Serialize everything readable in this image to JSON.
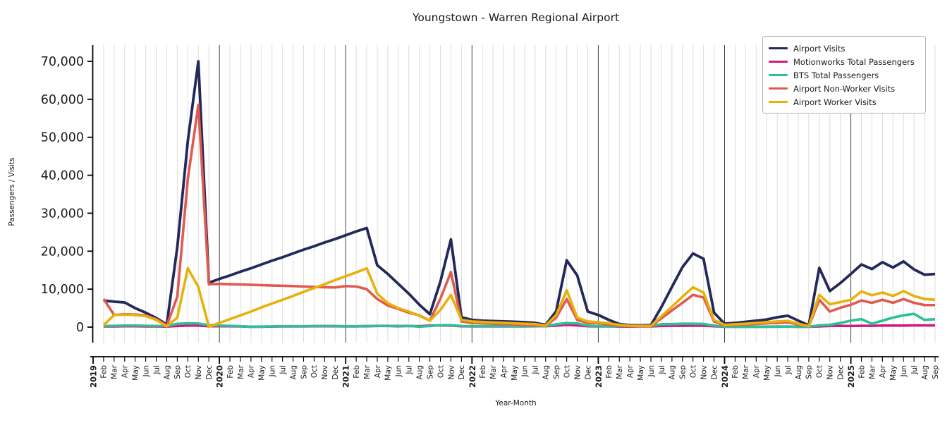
{
  "figure": {
    "title": "Youngstown - Warren Regional Airport",
    "xlabel": "Year-Month",
    "ylabel": "Passengers / Visits"
  },
  "axes": {
    "y_ticks": [
      {
        "v": 0,
        "label": "0"
      },
      {
        "v": 10000,
        "label": "10,000"
      },
      {
        "v": 20000,
        "label": "20,000"
      },
      {
        "v": 30000,
        "label": "30,000"
      },
      {
        "v": 40000,
        "label": "40,000"
      },
      {
        "v": 50000,
        "label": "50,000"
      },
      {
        "v": 60000,
        "label": "60,000"
      },
      {
        "v": 70000,
        "label": "70,000"
      }
    ],
    "year_line_indices": [
      12,
      24,
      36,
      48,
      60,
      72
    ],
    "grid_color": "#dcdcdc",
    "year_line_color": "#3d3d3d",
    "spine_color": "#000000"
  },
  "chart_data": {
    "type": "line",
    "title": "Youngstown - Warren Regional Airport",
    "xlabel": "Year-Month",
    "ylabel": "Passengers / Visits",
    "ylim": [
      0,
      70000
    ],
    "grid": "vertical-monthly",
    "legend_position": "upper right",
    "categories": [
      "2019",
      "Feb",
      "Mar",
      "Apr",
      "May",
      "Jun",
      "Jul",
      "Aug",
      "Sep",
      "Oct",
      "Nov",
      "Dec",
      "2020",
      "Feb",
      "Mar",
      "Apr",
      "May",
      "Jun",
      "Jul",
      "Aug",
      "Sep",
      "Oct",
      "Nov",
      "Dec",
      "2021",
      "Feb",
      "Mar",
      "Apr",
      "May",
      "Jun",
      "Jul",
      "Aug",
      "Sep",
      "Oct",
      "Nov",
      "Dec",
      "2022",
      "Feb",
      "Mar",
      "Apr",
      "May",
      "Jun",
      "Jul",
      "Aug",
      "Sep",
      "Oct",
      "Nov",
      "Dec",
      "2023",
      "Feb",
      "Mar",
      "Apr",
      "May",
      "Jun",
      "Jul",
      "Aug",
      "Sep",
      "Oct",
      "Nov",
      "Dec",
      "2024",
      "Feb",
      "Mar",
      "Apr",
      "May",
      "Jun",
      "Jul",
      "Aug",
      "Sep",
      "Oct",
      "Nov",
      "Dec",
      "2025",
      "Feb",
      "Mar",
      "Apr",
      "May",
      "Jun",
      "Jul",
      "Aug",
      "Sep"
    ],
    "series": [
      {
        "name": "Airport Visits",
        "color": "#24295b",
        "width": 3.8,
        "values": [
          null,
          7000,
          6700,
          6500,
          5000,
          3800,
          2400,
          700,
          21000,
          49000,
          70000,
          11700,
          12700,
          13600,
          14600,
          15500,
          16500,
          17500,
          18400,
          19400,
          20400,
          21300,
          22300,
          23200,
          24200,
          25200,
          26100,
          16300,
          14000,
          11400,
          8800,
          5900,
          3400,
          12000,
          23100,
          2600,
          1900,
          1700,
          1600,
          1500,
          1400,
          1300,
          1100,
          600,
          4200,
          17600,
          13600,
          4100,
          3200,
          1900,
          800,
          500,
          450,
          500,
          5300,
          10600,
          15800,
          19400,
          18000,
          3800,
          900,
          1100,
          1400,
          1700,
          2000,
          2600,
          3000,
          1700,
          450,
          15600,
          9500,
          11600,
          14000,
          16500,
          15300,
          17100,
          15700,
          17300,
          15200,
          13800,
          14000
        ]
      },
      {
        "name": "Motionworks Total Passengers",
        "color": "#d4197d",
        "width": 3.6,
        "values": [
          null,
          200,
          200,
          250,
          250,
          200,
          200,
          150,
          300,
          400,
          400,
          250,
          250,
          250,
          200,
          100,
          100,
          150,
          200,
          200,
          200,
          250,
          250,
          250,
          200,
          200,
          250,
          300,
          300,
          250,
          300,
          250,
          400,
          450,
          400,
          250,
          200,
          200,
          200,
          200,
          200,
          200,
          250,
          250,
          400,
          600,
          450,
          250,
          200,
          200,
          150,
          150,
          200,
          200,
          300,
          350,
          350,
          400,
          350,
          250,
          100,
          100,
          100,
          100,
          100,
          150,
          150,
          100,
          100,
          200,
          300,
          350,
          300,
          350,
          350,
          400,
          400,
          400,
          450,
          450,
          450
        ]
      },
      {
        "name": "BTS Total Passengers",
        "color": "#2cc09a",
        "width": 3.6,
        "values": [
          null,
          300,
          350,
          400,
          400,
          350,
          300,
          300,
          870,
          1000,
          950,
          500,
          400,
          350,
          250,
          100,
          150,
          200,
          250,
          250,
          250,
          300,
          300,
          300,
          250,
          250,
          300,
          350,
          350,
          300,
          350,
          100,
          300,
          500,
          500,
          300,
          250,
          250,
          250,
          250,
          250,
          250,
          300,
          250,
          750,
          1050,
          1000,
          400,
          250,
          250,
          250,
          250,
          300,
          300,
          750,
          800,
          900,
          900,
          850,
          400,
          150,
          100,
          100,
          100,
          100,
          100,
          150,
          100,
          100,
          450,
          600,
          1100,
          1700,
          2100,
          900,
          1700,
          2500,
          3100,
          3500,
          1900,
          2100
        ]
      },
      {
        "name": "Airport Non-Worker Visits",
        "color": "#e05a50",
        "width": 3.6,
        "values": [
          null,
          7400,
          3200,
          3400,
          3300,
          3100,
          2100,
          400,
          8000,
          39000,
          58500,
          11300,
          11400,
          11300,
          11250,
          11150,
          11050,
          10950,
          10900,
          10800,
          10700,
          10600,
          10500,
          10450,
          10800,
          10700,
          10000,
          7400,
          5700,
          4800,
          3800,
          3100,
          1700,
          7500,
          14500,
          1500,
          1100,
          1000,
          900,
          800,
          700,
          600,
          500,
          300,
          2500,
          7400,
          1900,
          1100,
          1050,
          700,
          400,
          250,
          250,
          250,
          2300,
          4400,
          6400,
          8500,
          7800,
          1500,
          450,
          550,
          700,
          850,
          1000,
          1100,
          1250,
          700,
          200,
          7200,
          4100,
          5100,
          5900,
          7000,
          6400,
          7200,
          6400,
          7400,
          6400,
          5800,
          5800
        ]
      },
      {
        "name": "Airport Worker Visits",
        "color": "#e8b10a",
        "width": 3.6,
        "values": [
          null,
          500,
          3200,
          3300,
          3200,
          2900,
          1900,
          200,
          2500,
          15500,
          10600,
          100,
          1100,
          2100,
          3100,
          4100,
          5200,
          6200,
          7200,
          8200,
          9300,
          10300,
          11300,
          12400,
          13400,
          14400,
          15500,
          8800,
          6300,
          5000,
          4100,
          3000,
          1700,
          4500,
          8500,
          1900,
          1500,
          1350,
          1250,
          1150,
          1000,
          900,
          800,
          400,
          3200,
          9700,
          2500,
          1500,
          1300,
          1000,
          600,
          350,
          350,
          300,
          2900,
          5400,
          8000,
          10500,
          9100,
          1900,
          600,
          750,
          900,
          1100,
          1300,
          1500,
          1650,
          900,
          250,
          8500,
          6000,
          6600,
          7200,
          9400,
          8400,
          9100,
          8200,
          9500,
          8200,
          7400,
          7200
        ]
      }
    ]
  }
}
